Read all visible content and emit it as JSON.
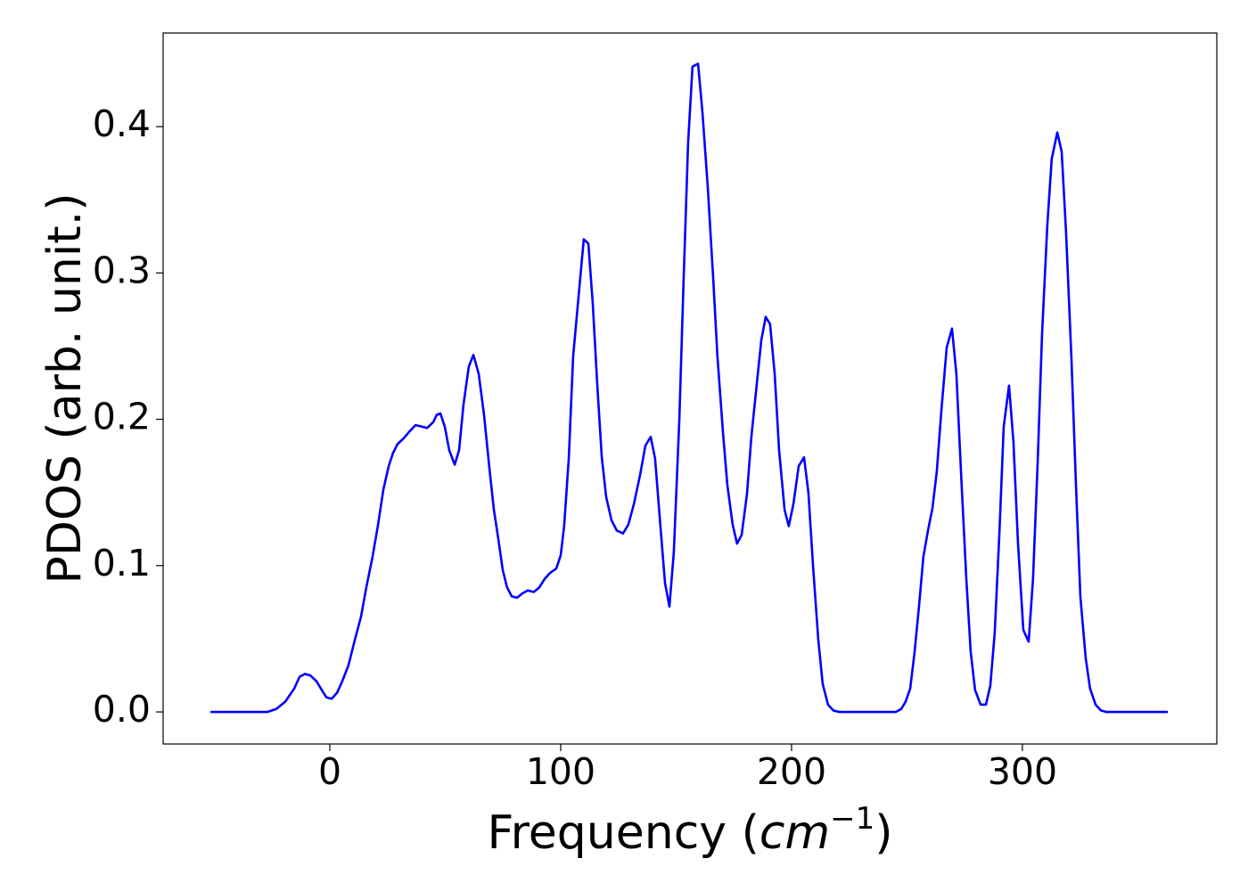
{
  "chart_data": {
    "type": "line",
    "xlabel": {
      "text": "Frequency (",
      "math": "cm",
      "sup": "−1",
      "end": ")"
    },
    "ylabel": "PDOS (arb. unit.)",
    "xlim": [
      -72.2,
      384.2
    ],
    "ylim": [
      -0.0219,
      0.464
    ],
    "xticks": [
      0,
      100,
      200,
      300
    ],
    "yticks": [
      {
        "value": 0,
        "label": "0.0"
      },
      {
        "value": 0.1,
        "label": "0.1"
      },
      {
        "value": 0.2,
        "label": "0.2"
      },
      {
        "value": 0.3,
        "label": "0.3"
      },
      {
        "value": 0.4,
        "label": "0.4"
      }
    ],
    "grid": false,
    "series": [
      {
        "color": "#0000ff",
        "x": [
          -51.7,
          -27,
          -23.2,
          -19.3,
          -15.4,
          -13.1,
          -10.8,
          -8.5,
          -5.8,
          -3.1,
          -1.5,
          0.8,
          3.1,
          5.4,
          8.1,
          10.8,
          13.5,
          15.8,
          18.5,
          20.8,
          23.2,
          25.5,
          27.4,
          29.3,
          32,
          34.7,
          37.1,
          39.8,
          42.1,
          44.8,
          46.3,
          47.9,
          49.8,
          51.7,
          54.1,
          56,
          57.9,
          60.2,
          62.2,
          64.5,
          66.8,
          69.1,
          71,
          73,
          74.9,
          76.8,
          78.8,
          81.1,
          83.4,
          85.7,
          88.4,
          90.7,
          93.1,
          95.4,
          98.1,
          100,
          101.5,
          103.5,
          105.4,
          108.1,
          110,
          112,
          113.9,
          115.8,
          117.8,
          119.7,
          122,
          124.3,
          127,
          129.3,
          131.7,
          134.4,
          136.7,
          139,
          140.9,
          143.2,
          145.2,
          147.1,
          149,
          151.4,
          153.3,
          155.2,
          157.1,
          159.5,
          161.4,
          163.7,
          166,
          167.9,
          170.3,
          172.2,
          174.5,
          176.4,
          178.4,
          180.7,
          182.6,
          185,
          186.9,
          188.8,
          190.7,
          192.7,
          194.6,
          197,
          198.8,
          200.8,
          203.1,
          205.4,
          207.3,
          209.3,
          211.6,
          213.5,
          215.8,
          218.1,
          220.5,
          245.2,
          247.5,
          249.4,
          251.4,
          253.3,
          255.2,
          257.1,
          259.1,
          261,
          262.9,
          264.9,
          267.2,
          269.5,
          271.4,
          273.4,
          275.7,
          277.6,
          279.5,
          281.9,
          284.2,
          286.1,
          288,
          290,
          291.9,
          294.2,
          296.1,
          298.1,
          300.4,
          302.7,
          304.6,
          306.6,
          308.5,
          310.8,
          312.7,
          315.1,
          317,
          318.9,
          321.2,
          323.2,
          325.1,
          327.4,
          329.3,
          331.7,
          334,
          336.3,
          363
        ],
        "values": [
          0,
          0,
          0.002,
          0.007,
          0.016,
          0.024,
          0.026,
          0.025,
          0.021,
          0.014,
          0.01,
          0.009,
          0.013,
          0.021,
          0.032,
          0.049,
          0.065,
          0.085,
          0.106,
          0.127,
          0.152,
          0.168,
          0.177,
          0.183,
          0.187,
          0.192,
          0.196,
          0.195,
          0.194,
          0.198,
          0.203,
          0.204,
          0.195,
          0.179,
          0.169,
          0.179,
          0.21,
          0.236,
          0.244,
          0.231,
          0.203,
          0.167,
          0.139,
          0.118,
          0.097,
          0.085,
          0.079,
          0.078,
          0.081,
          0.083,
          0.082,
          0.085,
          0.091,
          0.095,
          0.098,
          0.107,
          0.127,
          0.173,
          0.243,
          0.29,
          0.323,
          0.32,
          0.279,
          0.225,
          0.174,
          0.147,
          0.131,
          0.124,
          0.122,
          0.128,
          0.142,
          0.162,
          0.182,
          0.188,
          0.173,
          0.127,
          0.088,
          0.072,
          0.109,
          0.2,
          0.298,
          0.389,
          0.441,
          0.443,
          0.41,
          0.359,
          0.298,
          0.243,
          0.191,
          0.155,
          0.128,
          0.115,
          0.121,
          0.149,
          0.188,
          0.225,
          0.254,
          0.27,
          0.265,
          0.231,
          0.179,
          0.138,
          0.127,
          0.142,
          0.168,
          0.174,
          0.15,
          0.1,
          0.049,
          0.019,
          0.005,
          0.001,
          0,
          0,
          0.002,
          0.007,
          0.016,
          0.041,
          0.072,
          0.106,
          0.124,
          0.139,
          0.164,
          0.206,
          0.249,
          0.262,
          0.231,
          0.164,
          0.091,
          0.041,
          0.015,
          0.005,
          0.005,
          0.018,
          0.054,
          0.121,
          0.195,
          0.223,
          0.185,
          0.115,
          0.056,
          0.048,
          0.091,
          0.17,
          0.258,
          0.333,
          0.378,
          0.396,
          0.383,
          0.328,
          0.243,
          0.155,
          0.079,
          0.037,
          0.016,
          0.005,
          0.001,
          0,
          0
        ]
      }
    ]
  }
}
